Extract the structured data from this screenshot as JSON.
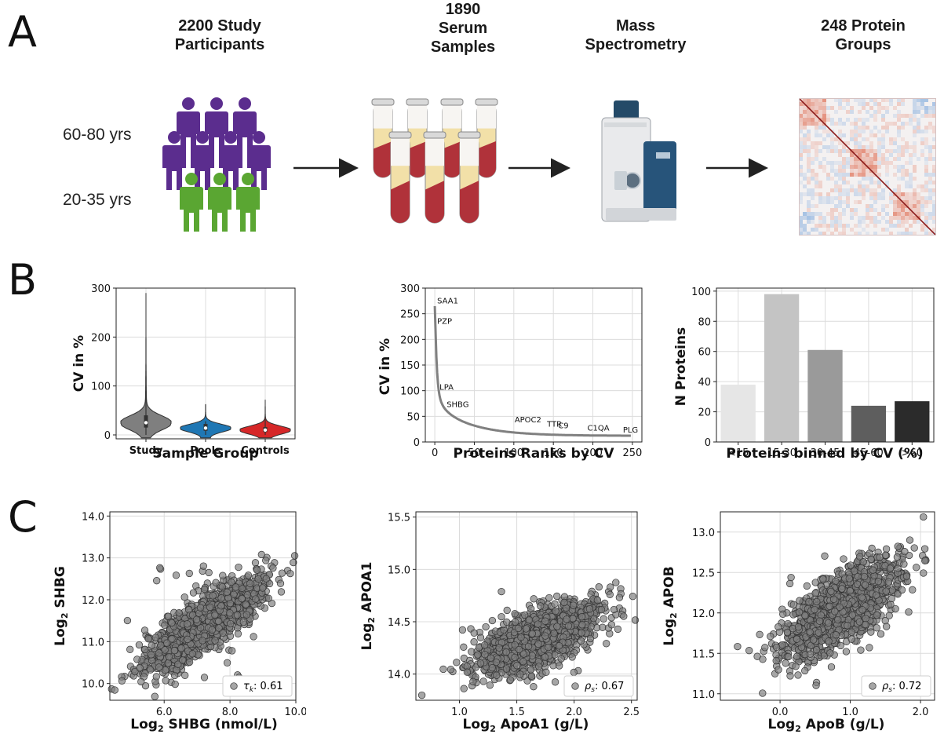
{
  "panel_a": {
    "letter": "A",
    "steps": [
      {
        "title": "2200 Study\nParticipants",
        "icon": "people-icon"
      },
      {
        "title": "1890\nSerum\nSamples",
        "icon": "test-tubes-icon"
      },
      {
        "title": "Mass\nSpectrometry",
        "icon": "mass-spectrometer-icon"
      },
      {
        "title": "248 Protein\nGroups",
        "icon": "correlation-heatmap-icon"
      }
    ],
    "age_groups": [
      {
        "label": "60-80 yrs",
        "color": "#5b2d8e"
      },
      {
        "label": "20-35 yrs",
        "color": "#5aa632"
      }
    ]
  },
  "panel_b": {
    "letter": "B"
  },
  "panel_c": {
    "letter": "C"
  },
  "chart_data": [
    {
      "id": "b1",
      "type": "violin",
      "xlabel": "Sample Group",
      "ylabel": "CV in %",
      "ylim": [
        -8,
        300
      ],
      "yticks": [
        0,
        100,
        200,
        300
      ],
      "grid": true,
      "categories": [
        "Study",
        "Pools",
        "Controls"
      ],
      "colors": [
        "#7f7f7f",
        "#1f77b4",
        "#d62728"
      ],
      "medians": [
        25,
        14,
        10
      ],
      "maxima": [
        290,
        62,
        72
      ]
    },
    {
      "id": "b2",
      "type": "line",
      "xlabel": "Proteins Ranks by CV",
      "ylabel": "CV in %",
      "xlim": [
        -12,
        262
      ],
      "ylim": [
        0,
        300
      ],
      "xticks": [
        0,
        50,
        100,
        150,
        200,
        250
      ],
      "yticks": [
        0,
        50,
        100,
        150,
        200,
        250,
        300
      ],
      "grid": true,
      "annotations": [
        {
          "text": "SAA1",
          "x": 3,
          "y": 270
        },
        {
          "text": "PZP",
          "x": 3,
          "y": 230
        },
        {
          "text": "LPA",
          "x": 6,
          "y": 102
        },
        {
          "text": "SHBG",
          "x": 15,
          "y": 68
        },
        {
          "text": "APOC2",
          "x": 101,
          "y": 38
        },
        {
          "text": "TTR",
          "x": 142,
          "y": 30
        },
        {
          "text": "C9",
          "x": 156,
          "y": 27
        },
        {
          "text": "C1QA",
          "x": 193,
          "y": 22
        },
        {
          "text": "PLG",
          "x": 238,
          "y": 18
        }
      ]
    },
    {
      "id": "b3",
      "type": "bar",
      "xlabel": "Proteins binned by CV (%)",
      "ylabel": "N Proteins",
      "ylim": [
        0,
        102
      ],
      "yticks": [
        0,
        20,
        40,
        60,
        80,
        100
      ],
      "grid": true,
      "categories": [
        "<15",
        "15-30",
        "30-45",
        "45-60",
        ">60"
      ],
      "values": [
        38,
        98,
        61,
        24,
        27
      ],
      "colors": [
        "#e6e6e6",
        "#c4c4c4",
        "#9a9a9a",
        "#5e5e5e",
        "#2b2b2b"
      ]
    },
    {
      "id": "c1",
      "type": "scatter",
      "xlabel_parts": [
        "Log",
        "2",
        " SHBG (nmol/L)"
      ],
      "ylabel_parts": [
        "Log",
        "2",
        " SHBG"
      ],
      "xlim": [
        4.35,
        10.0
      ],
      "ylim": [
        9.6,
        14.1
      ],
      "xticks": [
        6.0,
        8.0,
        10.0
      ],
      "xtick_labels": [
        "6.0",
        "8.0",
        "10.0"
      ],
      "yticks": [
        10.0,
        11.0,
        12.0,
        13.0,
        14.0
      ],
      "ytick_labels": [
        "10.0",
        "11.0",
        "12.0",
        "13.0",
        "14.0"
      ],
      "grid": true,
      "legend": {
        "symbol": "τ",
        "sub": "k",
        "value": ": 0.61",
        "position": "bottom-right"
      },
      "n_points": 1400,
      "center": [
        7.2,
        11.4
      ],
      "spread": [
        0.9,
        0.55
      ],
      "correlation": 0.82
    },
    {
      "id": "c2",
      "type": "scatter",
      "xlabel_parts": [
        "Log",
        "2",
        " ApoA1 (g/L)"
      ],
      "ylabel_parts": [
        "Log",
        "2",
        " APOA1"
      ],
      "xlim": [
        0.62,
        2.55
      ],
      "ylim": [
        13.75,
        15.55
      ],
      "xticks": [
        1.0,
        1.5,
        2.0,
        2.5
      ],
      "xtick_labels": [
        "1.0",
        "1.5",
        "2.0",
        "2.5"
      ],
      "yticks": [
        14.0,
        14.5,
        15.0,
        15.5
      ],
      "ytick_labels": [
        "14.0",
        "14.5",
        "15.0",
        "15.5"
      ],
      "grid": true,
      "legend": {
        "symbol": "ρ",
        "sub": "s",
        "value": ": 0.67",
        "position": "bottom-right"
      },
      "n_points": 1400,
      "center": [
        1.7,
        14.36
      ],
      "spread": [
        0.27,
        0.17
      ],
      "correlation": 0.67
    },
    {
      "id": "c3",
      "type": "scatter",
      "xlabel_parts": [
        "Log",
        "2",
        " ApoB (g/L)"
      ],
      "ylabel_parts": [
        "Log",
        "2",
        " APOB"
      ],
      "xlim": [
        -0.85,
        2.2
      ],
      "ylim": [
        10.92,
        13.25
      ],
      "xticks": [
        0.0,
        1.0,
        2.0
      ],
      "xtick_labels": [
        "0.0",
        "1.0",
        "2.0"
      ],
      "yticks": [
        11.0,
        11.5,
        12.0,
        12.5,
        13.0
      ],
      "ytick_labels": [
        "11.0",
        "11.5",
        "12.0",
        "12.5",
        "13.0"
      ],
      "grid": true,
      "legend": {
        "symbol": "ρ",
        "sub": "s",
        "value": ": 0.72",
        "position": "bottom-right"
      },
      "n_points": 1400,
      "center": [
        0.85,
        12.05
      ],
      "spread": [
        0.42,
        0.3
      ],
      "correlation": 0.72
    }
  ]
}
